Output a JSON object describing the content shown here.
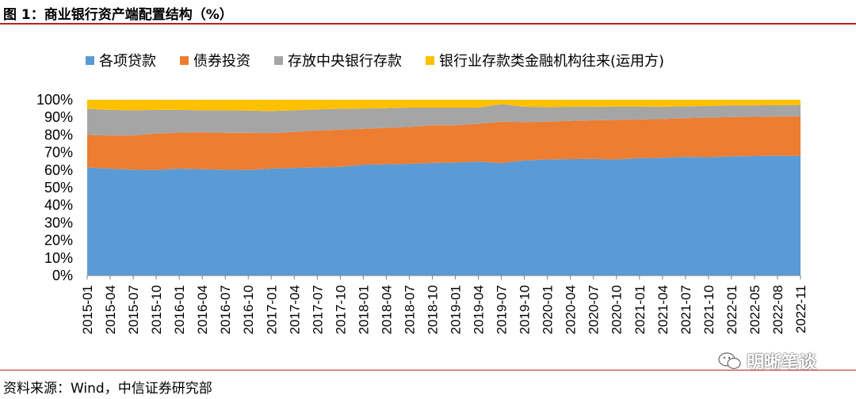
{
  "title": "图 1：商业银行资产端配置结构（%）",
  "source": "资料来源：Wind，中信证券研究部",
  "watermark": "明晰笔谈",
  "chart_data": {
    "type": "area",
    "stacked": true,
    "y_tick_labels": [
      "0%",
      "10%",
      "20%",
      "30%",
      "40%",
      "50%",
      "60%",
      "70%",
      "80%",
      "90%",
      "100%"
    ],
    "ylim": [
      0,
      100
    ],
    "x_tick_labels": [
      "2015-01",
      "2015-04",
      "2015-07",
      "2015-10",
      "2016-01",
      "2016-04",
      "2016-07",
      "2016-10",
      "2017-01",
      "2017-04",
      "2017-07",
      "2017-10",
      "2018-01",
      "2018-04",
      "2018-07",
      "2018-10",
      "2019-01",
      "2019-04",
      "2019-07",
      "2019-10",
      "2020-01",
      "2020-04",
      "2020-07",
      "2020-10",
      "2021-01",
      "2021-04",
      "2021-07",
      "2021-10",
      "2022-01",
      "2022-05",
      "2022-08",
      "2022-11"
    ],
    "legend_position": "top",
    "series": [
      {
        "name": "各项贷款",
        "color": "#5B9BD5",
        "values": [
          61.5,
          60.8,
          60.2,
          60.0,
          60.8,
          60.5,
          60.2,
          60.0,
          60.8,
          61.2,
          61.5,
          61.8,
          63.0,
          63.3,
          63.5,
          64.0,
          64.3,
          64.8,
          64.0,
          65.5,
          66.0,
          66.2,
          66.3,
          66.0,
          66.8,
          67.0,
          67.5,
          67.3,
          67.8,
          68.0,
          68.2,
          68.0
        ]
      },
      {
        "name": "债券投资",
        "color": "#ED7D31",
        "values": [
          18.5,
          18.8,
          19.5,
          20.8,
          20.5,
          21.0,
          21.0,
          21.2,
          20.2,
          20.5,
          21.0,
          21.2,
          20.5,
          20.7,
          21.0,
          21.5,
          21.2,
          21.5,
          23.5,
          21.8,
          21.5,
          21.8,
          22.0,
          22.5,
          22.0,
          22.0,
          22.0,
          22.5,
          22.4,
          22.3,
          22.3,
          22.5
        ]
      },
      {
        "name": "存放中央银行存款",
        "color": "#A5A5A5",
        "values": [
          14.8,
          14.6,
          14.3,
          13.4,
          12.9,
          12.5,
          12.8,
          12.6,
          12.5,
          12.3,
          12.0,
          11.8,
          11.5,
          11.2,
          11.0,
          10.0,
          10.0,
          9.2,
          10.0,
          8.7,
          8.3,
          8.0,
          7.7,
          7.6,
          7.3,
          7.0,
          6.8,
          6.6,
          6.6,
          6.5,
          6.4,
          6.5
        ]
      },
      {
        "name": "银行业存款类金融机构往来(运用方)",
        "color": "#FFC000",
        "values": [
          5.2,
          5.8,
          6.0,
          5.8,
          5.8,
          6.0,
          6.0,
          6.2,
          6.5,
          6.0,
          5.5,
          5.2,
          5.0,
          4.8,
          4.5,
          4.5,
          4.5,
          4.5,
          2.5,
          4.0,
          4.2,
          4.0,
          4.0,
          3.9,
          3.9,
          4.0,
          3.7,
          3.6,
          3.2,
          3.2,
          3.1,
          3.0
        ]
      }
    ]
  }
}
